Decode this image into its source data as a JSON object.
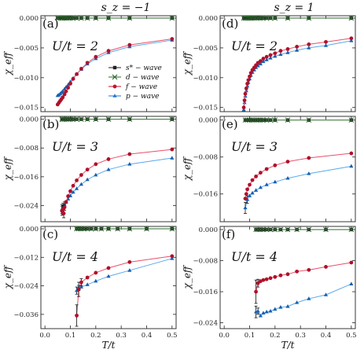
{
  "chart_data": {
    "type": "line",
    "columns": [
      "s_z = −1",
      "s_z = 1"
    ],
    "xlabel": "T/t",
    "ylabel": "χ_eff",
    "xlim": [
      0.0,
      0.5
    ],
    "xticks": [
      "0.0",
      "0.1",
      "0.2",
      "0.3",
      "0.4",
      "0.5"
    ],
    "legend": {
      "placement": "center-right of panel (a)",
      "entries": [
        {
          "label": "s* − wave",
          "color": "#222222",
          "marker": "square"
        },
        {
          "label": "d − wave",
          "color": "#2e6b2e",
          "marker": "star"
        },
        {
          "label": "f − wave",
          "color": "#c8102e",
          "marker": "circle"
        },
        {
          "label": "p − wave",
          "color": "#1f77d4",
          "marker": "triangle"
        }
      ]
    },
    "colors": {
      "s": "#222222",
      "d": "#2e6b2e",
      "f_marker": "#b0102a",
      "f_line": "#e8506a",
      "p_marker": "#1560b0",
      "p_line": "#5aa8ec"
    },
    "panels": [
      {
        "label": "(a)",
        "annotation": "U/t = 2",
        "ylim": [
          -0.0157,
          0.0004
        ],
        "yticks": [
          0,
          -0.005,
          -0.01,
          -0.015
        ],
        "ytick_labels": [
          "0.000",
          "−0.005",
          "−0.010",
          "−0.015"
        ],
        "zero_x": [
          0.05,
          0.062,
          0.067,
          0.071,
          0.077,
          0.083,
          0.091,
          0.1,
          0.111,
          0.125,
          0.143,
          0.167,
          0.2,
          0.25,
          0.333,
          0.5
        ],
        "f": {
          "x": [
            0.05,
            0.055,
            0.06,
            0.065,
            0.07,
            0.077,
            0.083,
            0.091,
            0.1,
            0.111,
            0.125,
            0.143,
            0.167,
            0.2,
            0.25,
            0.333,
            0.5
          ],
          "y": [
            -0.0145,
            -0.0142,
            -0.0139,
            -0.0136,
            -0.0133,
            -0.0128,
            -0.0123,
            -0.0117,
            -0.011,
            -0.0102,
            -0.0094,
            -0.0085,
            -0.0075,
            -0.0065,
            -0.0055,
            -0.0045,
            -0.0035
          ]
        },
        "p": {
          "x": [
            0.05,
            0.055,
            0.06,
            0.065,
            0.07,
            0.077,
            0.083,
            0.091,
            0.1,
            0.111,
            0.125,
            0.143,
            0.167,
            0.2,
            0.25,
            0.333,
            0.5
          ],
          "y": [
            -0.013,
            -0.0129,
            -0.0127,
            -0.0125,
            -0.0123,
            -0.0119,
            -0.0116,
            -0.0112,
            -0.0107,
            -0.0101,
            -0.0094,
            -0.0086,
            -0.0077,
            -0.0068,
            -0.0058,
            -0.0048,
            -0.0037
          ]
        }
      },
      {
        "label": "(b)",
        "annotation": "U/t = 3",
        "ylim": [
          -0.0285,
          0.0008
        ],
        "yticks": [
          0,
          -0.008,
          -0.016,
          -0.024
        ],
        "ytick_labels": [
          "0.000",
          "−0.008",
          "−0.016",
          "−0.024"
        ],
        "zero_x": [
          0.067,
          0.071,
          0.077,
          0.083,
          0.091,
          0.1,
          0.111,
          0.125,
          0.143,
          0.167,
          0.2,
          0.25,
          0.333,
          0.5
        ],
        "f": {
          "x": [
            0.067,
            0.071,
            0.074,
            0.077,
            0.083,
            0.091,
            0.1,
            0.111,
            0.125,
            0.143,
            0.167,
            0.2,
            0.25,
            0.333,
            0.5
          ],
          "y": [
            -0.0255,
            -0.025,
            -0.0262,
            -0.0245,
            -0.023,
            -0.0214,
            -0.02,
            -0.0185,
            -0.017,
            -0.0155,
            -0.014,
            -0.0125,
            -0.0111,
            -0.0097,
            -0.0084
          ],
          "err": [
            0.0012,
            0.001,
            0.0012,
            0.0008,
            0,
            0,
            0,
            0,
            0,
            0,
            0,
            0,
            0,
            0,
            0
          ]
        },
        "p": {
          "x": [
            0.067,
            0.071,
            0.077,
            0.083,
            0.091,
            0.1,
            0.111,
            0.125,
            0.143,
            0.167,
            0.2,
            0.25,
            0.333,
            0.5
          ],
          "y": [
            -0.025,
            -0.0244,
            -0.0238,
            -0.0231,
            -0.0222,
            -0.0213,
            -0.0203,
            -0.0193,
            -0.0181,
            -0.0168,
            -0.0155,
            -0.014,
            -0.0125,
            -0.0108
          ],
          "err": [
            0.0012,
            0.001,
            0.0008,
            0,
            0,
            0,
            0,
            0,
            0,
            0,
            0,
            0,
            0,
            0
          ]
        }
      },
      {
        "label": "(c)",
        "annotation": "U/t = 4",
        "ylim": [
          -0.042,
          0.001
        ],
        "yticks": [
          0,
          -0.012,
          -0.024,
          -0.036
        ],
        "ytick_labels": [
          "0.000",
          "−0.012",
          "−0.024",
          "−0.036"
        ],
        "zero_x": [
          0.125,
          0.133,
          0.143,
          0.154,
          0.167,
          0.182,
          0.2,
          0.222,
          0.25,
          0.286,
          0.333,
          0.4,
          0.5
        ],
        "f": {
          "x": [
            0.125,
            0.133,
            0.143,
            0.167,
            0.2,
            0.25,
            0.333,
            0.5
          ],
          "y": [
            -0.0365,
            -0.0255,
            -0.0225,
            -0.0205,
            -0.0185,
            -0.0165,
            -0.014,
            -0.0115
          ],
          "err": [
            0.0045,
            0.003,
            0.0015,
            0,
            0,
            0,
            0,
            0
          ]
        },
        "p": {
          "x": [
            0.125,
            0.133,
            0.143,
            0.167,
            0.2,
            0.25,
            0.333,
            0.5
          ],
          "y": [
            -0.026,
            -0.0248,
            -0.0245,
            -0.0235,
            -0.022,
            -0.02,
            -0.0175,
            -0.0125
          ],
          "err": [
            0.0015,
            0.001,
            0,
            0,
            0,
            0,
            0,
            0
          ]
        }
      },
      {
        "label": "(d)",
        "annotation": "U/t = 2",
        "ylim": [
          -0.0157,
          0.0004
        ],
        "yticks": [
          0,
          -0.005,
          -0.01,
          -0.015
        ],
        "ytick_labels": [
          "0.000",
          "−0.005",
          "−0.010",
          "−0.015"
        ],
        "zero_x": [
          0.077,
          0.083,
          0.087,
          0.091,
          0.095,
          0.1,
          0.105,
          0.111,
          0.118,
          0.125,
          0.133,
          0.143,
          0.154,
          0.167,
          0.182,
          0.2,
          0.25,
          0.333,
          0.5
        ],
        "f": {
          "x": [
            0.077,
            0.08,
            0.083,
            0.087,
            0.091,
            0.095,
            0.1,
            0.105,
            0.111,
            0.118,
            0.125,
            0.133,
            0.143,
            0.154,
            0.167,
            0.182,
            0.2,
            0.222,
            0.25,
            0.286,
            0.333,
            0.4,
            0.5
          ],
          "y": [
            -0.015,
            -0.0138,
            -0.0127,
            -0.0118,
            -0.011,
            -0.0104,
            -0.0098,
            -0.0092,
            -0.0087,
            -0.0083,
            -0.0079,
            -0.0075,
            -0.0072,
            -0.0068,
            -0.0065,
            -0.0062,
            -0.0059,
            -0.0055,
            -0.0052,
            -0.0048,
            -0.0044,
            -0.004,
            -0.0034
          ]
        },
        "p": {
          "x": [
            0.077,
            0.08,
            0.083,
            0.087,
            0.091,
            0.095,
            0.1,
            0.105,
            0.111,
            0.118,
            0.125,
            0.133,
            0.143,
            0.154,
            0.167,
            0.182,
            0.2,
            0.222,
            0.25,
            0.286,
            0.333,
            0.4,
            0.5
          ],
          "y": [
            -0.0154,
            -0.0142,
            -0.0131,
            -0.0122,
            -0.0114,
            -0.0108,
            -0.0102,
            -0.0096,
            -0.0091,
            -0.0087,
            -0.0083,
            -0.008,
            -0.0077,
            -0.0073,
            -0.007,
            -0.0067,
            -0.0064,
            -0.0061,
            -0.0058,
            -0.0054,
            -0.005,
            -0.0046,
            -0.0038
          ]
        }
      },
      {
        "label": "(e)",
        "annotation": "U/t = 3",
        "ylim": [
          -0.022,
          0.0008
        ],
        "yticks": [
          0,
          -0.008,
          -0.016
        ],
        "ytick_labels": [
          "0.000",
          "−0.008",
          "−0.016"
        ],
        "zero_x": [
          0.083,
          0.091,
          0.1,
          0.111,
          0.118,
          0.125,
          0.133,
          0.143,
          0.154,
          0.167,
          0.182,
          0.2,
          0.25,
          0.333,
          0.5
        ],
        "f": {
          "x": [
            0.083,
            0.087,
            0.091,
            0.1,
            0.111,
            0.125,
            0.143,
            0.167,
            0.2,
            0.25,
            0.333,
            0.5
          ],
          "y": [
            -0.017,
            -0.016,
            -0.015,
            -0.014,
            -0.013,
            -0.0122,
            -0.0114,
            -0.0106,
            -0.0098,
            -0.009,
            -0.0082,
            -0.0072
          ]
        },
        "p": {
          "x": [
            0.083,
            0.091,
            0.1,
            0.111,
            0.125,
            0.143,
            0.167,
            0.2,
            0.25,
            0.333,
            0.5
          ],
          "y": [
            -0.019,
            -0.0172,
            -0.0164,
            -0.0158,
            -0.0152,
            -0.0146,
            -0.014,
            -0.0134,
            -0.0126,
            -0.0116,
            -0.01
          ],
          "err": [
            0.0012,
            0.0008,
            0,
            0,
            0,
            0,
            0,
            0,
            0,
            0,
            0
          ]
        }
      },
      {
        "label": "(f)",
        "annotation": "U/t = 4",
        "ylim": [
          -0.0255,
          0.0008
        ],
        "yticks": [
          0,
          -0.008,
          -0.016,
          -0.024
        ],
        "ytick_labels": [
          "0.000",
          "−0.008",
          "−0.016",
          "−0.024"
        ],
        "zero_x": [
          0.125,
          0.133,
          0.143,
          0.154,
          0.167,
          0.182,
          0.2,
          0.222,
          0.25,
          0.286,
          0.333,
          0.4,
          0.5
        ],
        "f": {
          "x": [
            0.125,
            0.133,
            0.143,
            0.154,
            0.167,
            0.182,
            0.2,
            0.222,
            0.25,
            0.286,
            0.333,
            0.4,
            0.5
          ],
          "y": [
            -0.016,
            -0.0138,
            -0.0133,
            -0.013,
            -0.0128,
            -0.0125,
            -0.0122,
            -0.0118,
            -0.0115,
            -0.0108,
            -0.0104,
            -0.0096,
            -0.0085
          ],
          "err": [
            0.003,
            0.001,
            0,
            0,
            0,
            0,
            0,
            0,
            0,
            0,
            0,
            0,
            0
          ]
        },
        "p": {
          "x": [
            0.125,
            0.133,
            0.143,
            0.154,
            0.167,
            0.182,
            0.2,
            0.222,
            0.25,
            0.286,
            0.333,
            0.4,
            0.5
          ],
          "y": [
            -0.0212,
            -0.021,
            -0.0222,
            -0.0215,
            -0.0212,
            -0.021,
            -0.0205,
            -0.02,
            -0.0198,
            -0.0188,
            -0.0178,
            -0.0168,
            -0.014
          ],
          "err": [
            0.0015,
            0.0008,
            0,
            0,
            0,
            0,
            0,
            0,
            0,
            0,
            0,
            0,
            0
          ]
        }
      }
    ]
  }
}
